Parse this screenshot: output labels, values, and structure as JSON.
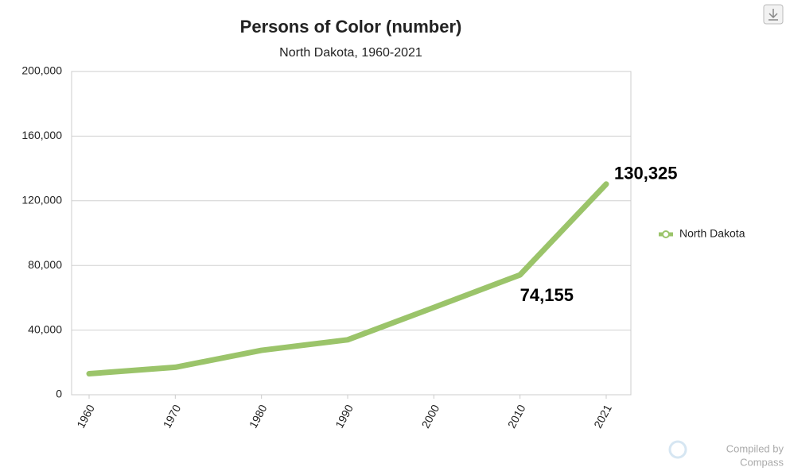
{
  "chart_data": {
    "type": "line",
    "title": "Persons of Color (number)",
    "subtitle": "North Dakota, 1960-2021",
    "categories": [
      "1960",
      "1970",
      "1980",
      "1990",
      "2000",
      "2010",
      "2021"
    ],
    "series": [
      {
        "name": "North Dakota",
        "color": "#9bc46a",
        "values": [
          13000,
          17000,
          27500,
          34000,
          54000,
          74155,
          130325
        ],
        "value_labels": [
          null,
          null,
          null,
          null,
          null,
          "74,155",
          "130,325"
        ]
      }
    ],
    "ylim": [
      0,
      200000
    ],
    "yticks": [
      0,
      {
        "value": 40000,
        "label": "40,000"
      },
      {
        "value": 80000,
        "label": "80,000"
      },
      {
        "value": 120000,
        "label": "120,000"
      },
      {
        "value": 160000,
        "label": "160,000"
      },
      {
        "value": 200000,
        "label": "200,000"
      }
    ],
    "grid": true,
    "legend": "right",
    "credit": [
      "Compiled by",
      "Compass"
    ]
  }
}
